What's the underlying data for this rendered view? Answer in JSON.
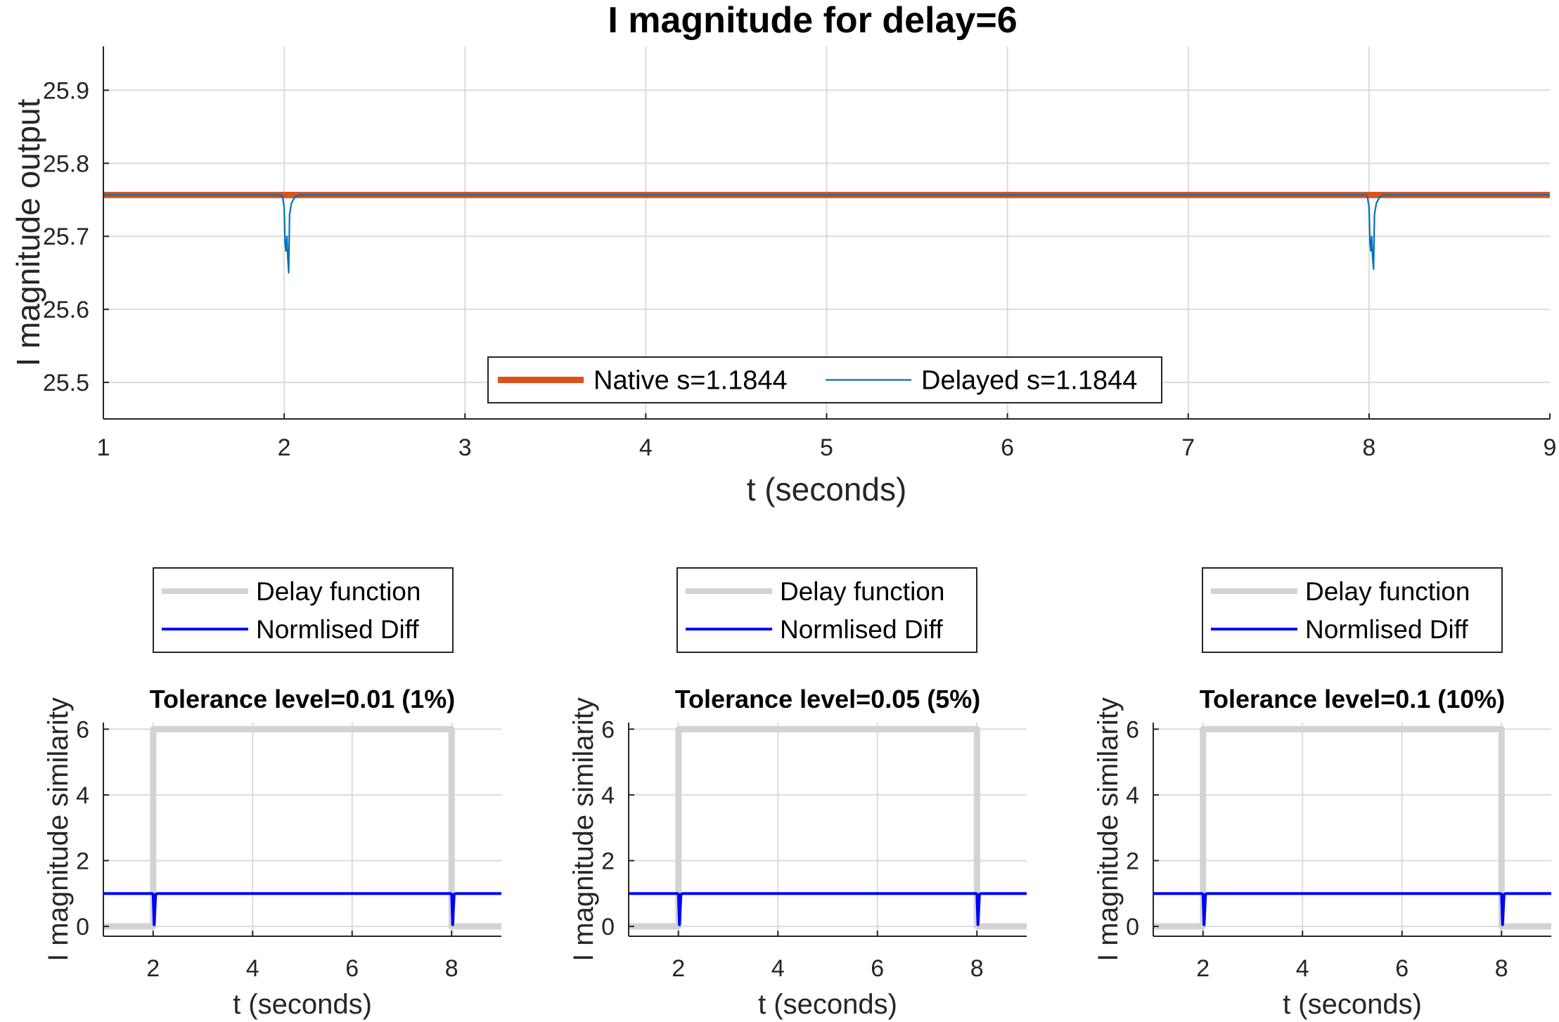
{
  "chart_data": [
    {
      "type": "line",
      "title": "I magnitude for delay=6",
      "xlabel": "t (seconds)",
      "ylabel": "I magnitude output",
      "xlim": [
        1,
        9
      ],
      "ylim": [
        25.45,
        25.96
      ],
      "xticks": [
        1,
        2,
        3,
        4,
        5,
        6,
        7,
        8,
        9
      ],
      "yticks": [
        25.5,
        25.6,
        25.7,
        25.8,
        25.9
      ],
      "ytick_labels": [
        "25.5",
        "25.6",
        "25.7",
        "25.8",
        "25.9"
      ],
      "grid": true,
      "legend": {
        "position": "bottom-center",
        "orientation": "horizontal"
      },
      "series": [
        {
          "name": "Native s=1.1844",
          "color": "#D95319",
          "x": [
            1,
            9
          ],
          "y": [
            25.7566,
            25.7566
          ]
        },
        {
          "name": "Delayed s=1.1844",
          "color": "#0072BD",
          "x": [
            1,
            1.98,
            1.99,
            2.0,
            2.005,
            2.01,
            2.015,
            2.02,
            2.025,
            2.03,
            2.04,
            2.05,
            2.06,
            2.08,
            7.98,
            7.99,
            8.0,
            8.005,
            8.01,
            8.015,
            8.02,
            8.025,
            8.03,
            8.04,
            8.05,
            8.06,
            8.08,
            9
          ],
          "y": [
            25.7566,
            25.7566,
            25.755,
            25.74,
            25.69,
            25.68,
            25.7,
            25.67,
            25.65,
            25.73,
            25.745,
            25.75,
            25.754,
            25.7566,
            25.7566,
            25.755,
            25.74,
            25.69,
            25.68,
            25.7,
            25.67,
            25.655,
            25.73,
            25.745,
            25.75,
            25.754,
            25.7566,
            25.7566
          ]
        }
      ]
    },
    {
      "type": "line",
      "title": "Tolerance level=0.01 (1%)",
      "xlabel": "t (seconds)",
      "ylabel": "I magnitude similarity",
      "xlim": [
        1,
        9
      ],
      "ylim": [
        -0.3,
        6.2
      ],
      "xticks": [
        2,
        4,
        6,
        8
      ],
      "yticks": [
        0,
        2,
        4,
        6
      ],
      "grid": true,
      "legend": {
        "position": "above",
        "orientation": "vertical"
      },
      "series": [
        {
          "name": "Delay function",
          "color": "#D3D3D3",
          "x": [
            1,
            2,
            2,
            8,
            8,
            9
          ],
          "y": [
            0,
            0,
            6,
            6,
            0,
            0
          ]
        },
        {
          "name": "Normlised Diff",
          "color": "#0000FF",
          "x": [
            1,
            1.98,
            2.0,
            2.02,
            2.05,
            2.08,
            7.98,
            8.0,
            8.02,
            8.05,
            8.08,
            9
          ],
          "y": [
            1,
            1,
            0.98,
            0.05,
            0.97,
            1,
            1,
            0.98,
            0.05,
            0.97,
            1,
            1
          ]
        }
      ]
    },
    {
      "type": "line",
      "title": "Tolerance level=0.05 (5%)",
      "xlabel": "t (seconds)",
      "ylabel": "I magnitude similarity",
      "xlim": [
        1,
        9
      ],
      "ylim": [
        -0.3,
        6.2
      ],
      "xticks": [
        2,
        4,
        6,
        8
      ],
      "yticks": [
        0,
        2,
        4,
        6
      ],
      "grid": true,
      "legend": {
        "position": "above",
        "orientation": "vertical"
      },
      "series": [
        {
          "name": "Delay function",
          "color": "#D3D3D3",
          "x": [
            1,
            2,
            2,
            8,
            8,
            9
          ],
          "y": [
            0,
            0,
            6,
            6,
            0,
            0
          ]
        },
        {
          "name": "Normlised Diff",
          "color": "#0000FF",
          "x": [
            1,
            1.98,
            2.0,
            2.02,
            2.05,
            2.08,
            7.98,
            8.0,
            8.02,
            8.05,
            8.08,
            9
          ],
          "y": [
            1,
            1,
            0.98,
            0.05,
            0.97,
            1,
            1,
            0.98,
            0.05,
            0.97,
            1,
            1
          ]
        }
      ]
    },
    {
      "type": "line",
      "title": "Tolerance level=0.1 (10%)",
      "xlabel": "t (seconds)",
      "ylabel": "I magnitude similarity",
      "xlim": [
        1,
        9
      ],
      "ylim": [
        -0.3,
        6.2
      ],
      "xticks": [
        2,
        4,
        6,
        8
      ],
      "yticks": [
        0,
        2,
        4,
        6
      ],
      "grid": true,
      "legend": {
        "position": "above",
        "orientation": "vertical"
      },
      "series": [
        {
          "name": "Delay function",
          "color": "#D3D3D3",
          "x": [
            1,
            2,
            2,
            8,
            8,
            9
          ],
          "y": [
            0,
            0,
            6,
            6,
            0,
            0
          ]
        },
        {
          "name": "Normlised Diff",
          "color": "#0000FF",
          "x": [
            1,
            1.98,
            2.0,
            2.02,
            2.05,
            2.08,
            7.98,
            8.0,
            8.02,
            8.05,
            8.08,
            9
          ],
          "y": [
            1,
            1,
            0.98,
            0.05,
            0.97,
            1,
            1,
            0.98,
            0.05,
            0.97,
            1,
            1
          ]
        }
      ]
    }
  ]
}
